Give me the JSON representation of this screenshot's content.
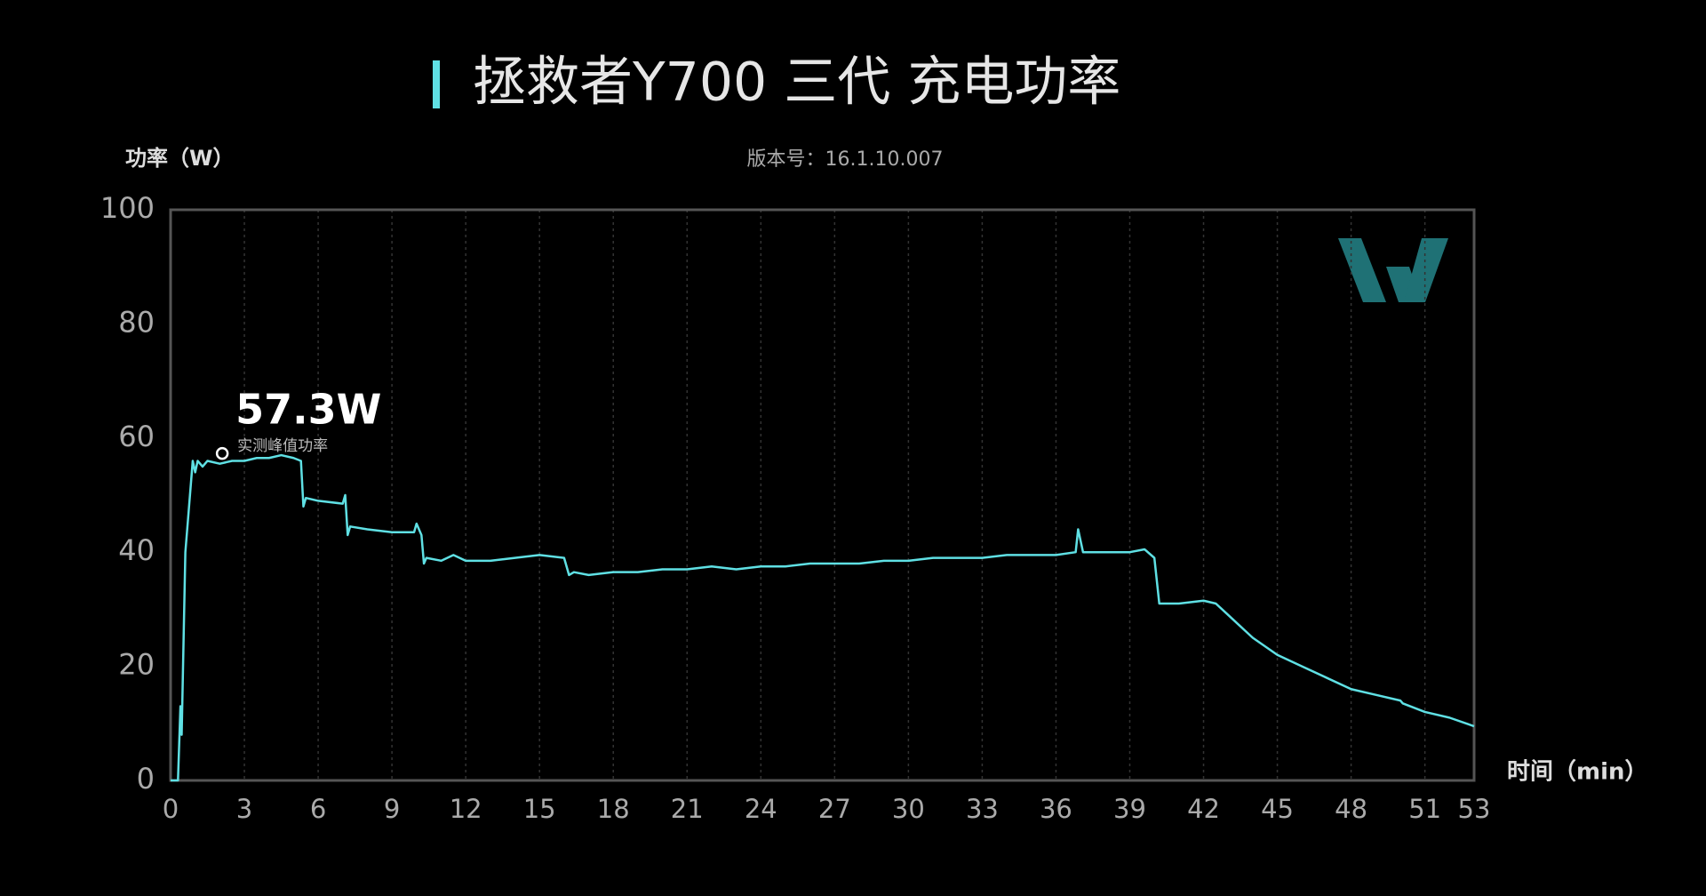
{
  "chart_data": {
    "type": "line",
    "title": "拯救者Y700 三代  充电功率",
    "subtitle": "版本号：16.1.10.007",
    "y_label": "功率（W）",
    "x_label": "时间（min）",
    "xlim": [
      0,
      53
    ],
    "ylim": [
      0,
      100
    ],
    "xticks": [
      0,
      3,
      6,
      9,
      12,
      15,
      18,
      21,
      24,
      27,
      30,
      33,
      36,
      39,
      42,
      45,
      48,
      51,
      53
    ],
    "yticks": [
      0,
      20,
      40,
      60,
      80,
      100
    ],
    "grid": "x",
    "color": "#5fe0e4",
    "x": [
      0,
      0.3,
      0.4,
      0.45,
      0.6,
      0.9,
      1.0,
      1.1,
      1.3,
      1.5,
      2,
      2.5,
      3,
      3.5,
      4,
      4.5,
      5,
      5.3,
      5.4,
      5.5,
      6,
      7,
      7.1,
      7.2,
      7.3,
      8,
      9,
      9.9,
      10,
      10.2,
      10.3,
      10.4,
      11,
      11.5,
      12,
      13,
      14,
      15,
      16,
      16.2,
      16.4,
      17,
      18,
      19,
      20,
      21,
      22,
      23,
      24,
      25,
      26,
      27,
      28,
      29,
      30,
      31,
      32,
      33,
      34,
      35,
      36,
      36.8,
      36.9,
      37.1,
      38,
      39,
      39.6,
      40,
      40.2,
      41,
      42,
      42.5,
      43,
      43.5,
      44,
      45,
      46,
      47,
      48,
      49,
      50,
      50.1,
      51,
      52,
      53
    ],
    "values": [
      0,
      0,
      13,
      8,
      40,
      56,
      54,
      56,
      55,
      56,
      55.5,
      56,
      56,
      56.5,
      56.5,
      57,
      56.5,
      56,
      48,
      49.5,
      49,
      48.5,
      50,
      43,
      44.5,
      44,
      43.5,
      43.5,
      45,
      43,
      38,
      39,
      38.5,
      39.5,
      38.5,
      38.5,
      39,
      39.5,
      39,
      36,
      36.5,
      36,
      36.5,
      36.5,
      37,
      37,
      37.5,
      37,
      37.5,
      37.5,
      38,
      38,
      38,
      38.5,
      38.5,
      39,
      39,
      39,
      39.5,
      39.5,
      39.5,
      40,
      44,
      40,
      40,
      40,
      40.5,
      39,
      31,
      31,
      31.5,
      31,
      29,
      27,
      25,
      22,
      20,
      18,
      16,
      15,
      14,
      13.5,
      12,
      11,
      9.5
    ],
    "annotation": {
      "x": 2.1,
      "value": 57.3,
      "label": "57.3W",
      "text": "实测峰值功率"
    }
  }
}
